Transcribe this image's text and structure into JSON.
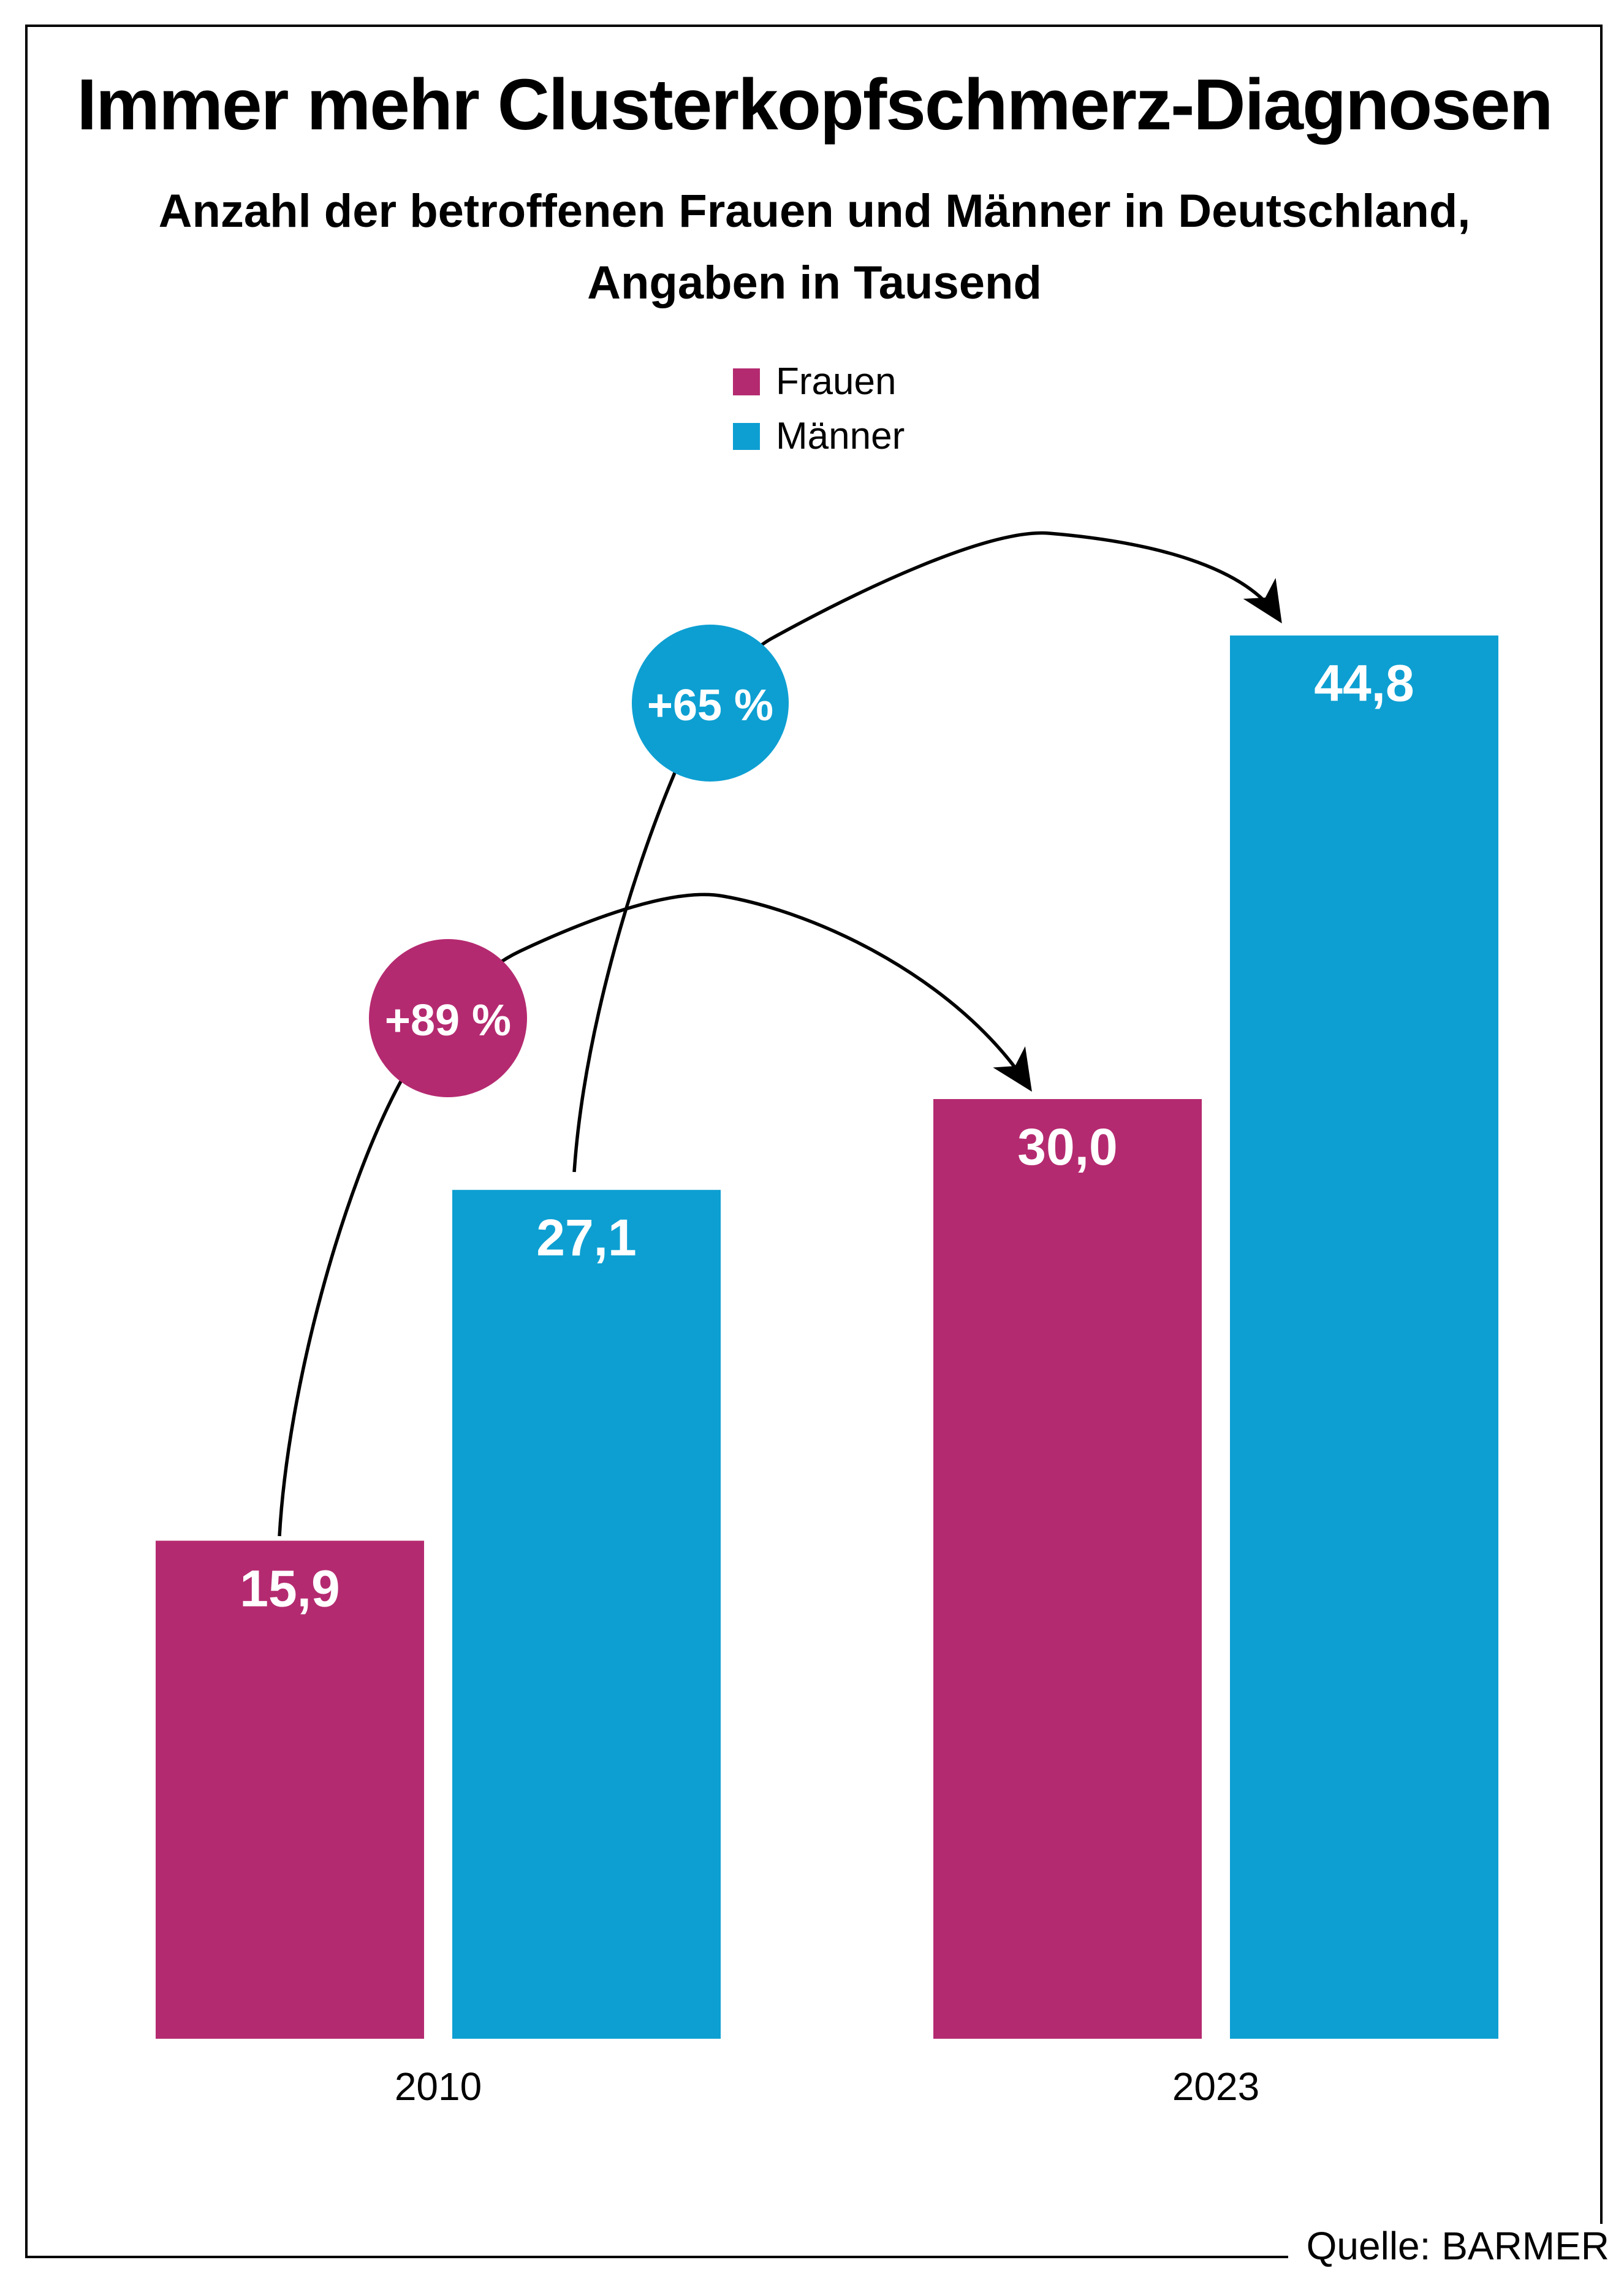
{
  "page": {
    "title": "Immer mehr Clusterkopfschmerz-Diagnosen",
    "subtitle_line1": "Anzahl der betroffenen Frauen und Männer in Deutschland,",
    "subtitle_line2": "Angaben in Tausend",
    "source": "Quelle: BARMER"
  },
  "colors": {
    "frauen": "#b42a70",
    "maenner": "#0d9fd2",
    "arrow": "#000000",
    "text": "#000000",
    "value_label": "#ffffff",
    "background": "#ffffff"
  },
  "legend": {
    "items": [
      {
        "label": "Frauen",
        "color_key": "frauen"
      },
      {
        "label": "Männer",
        "color_key": "maenner"
      }
    ]
  },
  "chart_data": {
    "type": "bar",
    "title": "Immer mehr Clusterkopfschmerz-Diagnosen",
    "subtitle": "Anzahl der betroffenen Frauen und Männer in Deutschland, Angaben in Tausend",
    "unit": "Tausend",
    "categories": [
      "2010",
      "2023"
    ],
    "series": [
      {
        "name": "Frauen",
        "values": [
          15.9,
          30.0
        ],
        "value_labels": [
          "15,9",
          "30,0"
        ],
        "color": "#b42a70"
      },
      {
        "name": "Männer",
        "values": [
          27.1,
          44.8
        ],
        "value_labels": [
          "27,1",
          "44,8"
        ],
        "color": "#0d9fd2"
      }
    ],
    "annotations": [
      {
        "label": "+89 %",
        "series": "Frauen",
        "from": "2010",
        "to": "2023",
        "color": "#b42a70"
      },
      {
        "label": "+65 %",
        "series": "Männer",
        "from": "2010",
        "to": "2023",
        "color": "#0d9fd2"
      }
    ],
    "ylim": [
      0,
      48
    ],
    "grid": false,
    "y_axis_visible": false,
    "legend_position": "top-center",
    "source": "Quelle: BARMER"
  }
}
